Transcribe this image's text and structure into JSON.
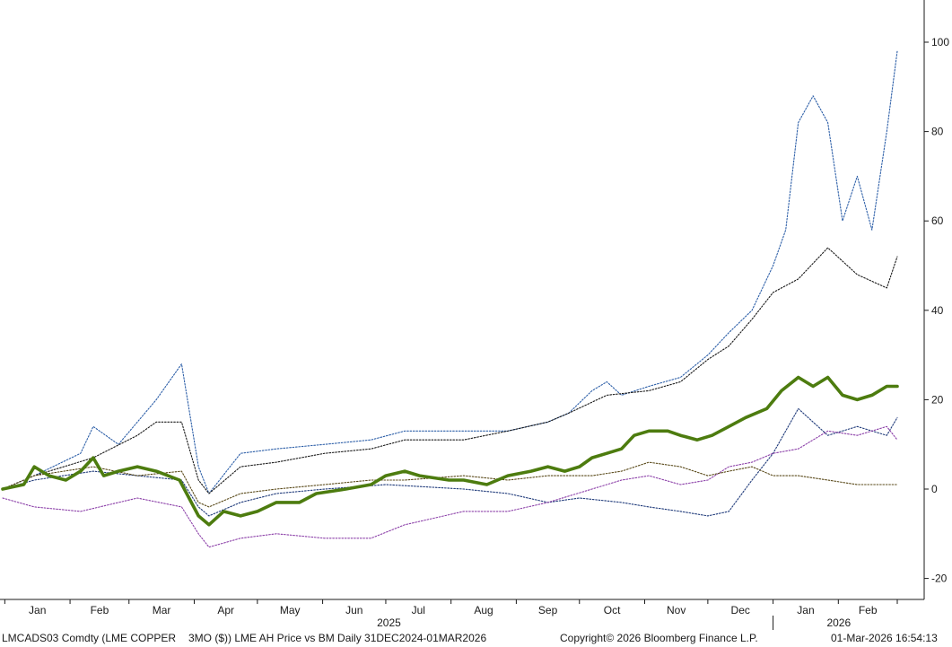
{
  "chart_data": {
    "type": "line",
    "title": "",
    "xlabel": "",
    "ylabel": "",
    "ylim": [
      -25,
      105
    ],
    "yticks": [
      -20,
      0,
      20,
      40,
      60,
      80,
      100
    ],
    "y_axis_side": "right",
    "grid": false,
    "x_month_labels": [
      "Jan",
      "Feb",
      "Mar",
      "Apr",
      "May",
      "Jun",
      "Jul",
      "Aug",
      "Sep",
      "Oct",
      "Nov",
      "Dec",
      "Jan",
      "Feb"
    ],
    "x_year_labels": [
      "2025",
      "2026"
    ],
    "x_range": [
      "2024-12-31",
      "2026-03-01"
    ],
    "series": [
      {
        "style": "solid-thick",
        "color": "#4d7c0f",
        "points": [
          [
            "2024-12-31",
            0
          ],
          [
            "2025-01-10",
            1
          ],
          [
            "2025-01-15",
            5
          ],
          [
            "2025-01-22",
            3
          ],
          [
            "2025-01-30",
            2
          ],
          [
            "2025-02-06",
            4
          ],
          [
            "2025-02-12",
            7
          ],
          [
            "2025-02-17",
            3
          ],
          [
            "2025-02-24",
            4
          ],
          [
            "2025-03-05",
            5
          ],
          [
            "2025-03-14",
            4
          ],
          [
            "2025-03-25",
            2
          ],
          [
            "2025-04-03",
            -6
          ],
          [
            "2025-04-08",
            -8
          ],
          [
            "2025-04-15",
            -5
          ],
          [
            "2025-04-23",
            -6
          ],
          [
            "2025-05-01",
            -5
          ],
          [
            "2025-05-10",
            -3
          ],
          [
            "2025-05-21",
            -3
          ],
          [
            "2025-05-29",
            -1
          ],
          [
            "2025-06-12",
            0
          ],
          [
            "2025-06-24",
            1
          ],
          [
            "2025-07-01",
            3
          ],
          [
            "2025-07-10",
            4
          ],
          [
            "2025-07-17",
            3
          ],
          [
            "2025-07-31",
            2
          ],
          [
            "2025-08-07",
            2
          ],
          [
            "2025-08-18",
            1
          ],
          [
            "2025-08-28",
            3
          ],
          [
            "2025-09-08",
            4
          ],
          [
            "2025-09-16",
            5
          ],
          [
            "2025-09-24",
            4
          ],
          [
            "2025-10-01",
            5
          ],
          [
            "2025-10-07",
            7
          ],
          [
            "2025-10-14",
            8
          ],
          [
            "2025-10-21",
            9
          ],
          [
            "2025-10-27",
            12
          ],
          [
            "2025-11-03",
            13
          ],
          [
            "2025-11-12",
            13
          ],
          [
            "2025-11-18",
            12
          ],
          [
            "2025-11-26",
            11
          ],
          [
            "2025-12-03",
            12
          ],
          [
            "2025-12-11",
            14
          ],
          [
            "2025-12-19",
            16
          ],
          [
            "2025-12-29",
            18
          ],
          [
            "2026-01-05",
            22
          ],
          [
            "2026-01-13",
            25
          ],
          [
            "2026-01-20",
            23
          ],
          [
            "2026-01-27",
            25
          ],
          [
            "2026-02-03",
            21
          ],
          [
            "2026-02-10",
            20
          ],
          [
            "2026-02-17",
            21
          ],
          [
            "2026-02-24",
            23
          ],
          [
            "2026-03-01",
            23
          ]
        ]
      },
      {
        "style": "dotted",
        "color": "#2d5fa8",
        "points": [
          [
            "2024-12-31",
            0
          ],
          [
            "2025-01-15",
            3
          ],
          [
            "2025-02-06",
            8
          ],
          [
            "2025-02-12",
            14
          ],
          [
            "2025-02-24",
            10
          ],
          [
            "2025-03-05",
            15
          ],
          [
            "2025-03-14",
            20
          ],
          [
            "2025-03-26",
            28
          ],
          [
            "2025-04-03",
            5
          ],
          [
            "2025-04-08",
            -1
          ],
          [
            "2025-04-23",
            8
          ],
          [
            "2025-05-10",
            9
          ],
          [
            "2025-06-02",
            10
          ],
          [
            "2025-06-24",
            11
          ],
          [
            "2025-07-10",
            13
          ],
          [
            "2025-08-07",
            13
          ],
          [
            "2025-08-28",
            13
          ],
          [
            "2025-09-16",
            15
          ],
          [
            "2025-09-26",
            17
          ],
          [
            "2025-10-07",
            22
          ],
          [
            "2025-10-14",
            24
          ],
          [
            "2025-10-21",
            21
          ],
          [
            "2025-11-03",
            23
          ],
          [
            "2025-11-18",
            25
          ],
          [
            "2025-12-01",
            30
          ],
          [
            "2025-12-11",
            35
          ],
          [
            "2025-12-22",
            40
          ],
          [
            "2026-01-01",
            50
          ],
          [
            "2026-01-07",
            58
          ],
          [
            "2026-01-13",
            82
          ],
          [
            "2026-01-20",
            88
          ],
          [
            "2026-01-27",
            82
          ],
          [
            "2026-02-03",
            60
          ],
          [
            "2026-02-10",
            70
          ],
          [
            "2026-02-17",
            58
          ],
          [
            "2026-02-24",
            80
          ],
          [
            "2026-03-01",
            98
          ]
        ]
      },
      {
        "style": "dotted",
        "color": "#1a1a1a",
        "points": [
          [
            "2024-12-31",
            0
          ],
          [
            "2025-01-15",
            3
          ],
          [
            "2025-02-12",
            7
          ],
          [
            "2025-03-05",
            12
          ],
          [
            "2025-03-14",
            15
          ],
          [
            "2025-03-26",
            15
          ],
          [
            "2025-04-03",
            2
          ],
          [
            "2025-04-08",
            -1
          ],
          [
            "2025-04-23",
            5
          ],
          [
            "2025-05-10",
            6
          ],
          [
            "2025-06-02",
            8
          ],
          [
            "2025-06-24",
            9
          ],
          [
            "2025-07-10",
            11
          ],
          [
            "2025-08-07",
            11
          ],
          [
            "2025-08-28",
            13
          ],
          [
            "2025-09-16",
            15
          ],
          [
            "2025-09-26",
            17
          ],
          [
            "2025-10-14",
            21
          ],
          [
            "2025-11-03",
            22
          ],
          [
            "2025-11-18",
            24
          ],
          [
            "2025-12-01",
            29
          ],
          [
            "2025-12-11",
            32
          ],
          [
            "2025-12-22",
            38
          ],
          [
            "2026-01-01",
            44
          ],
          [
            "2026-01-13",
            47
          ],
          [
            "2026-01-27",
            54
          ],
          [
            "2026-02-10",
            48
          ],
          [
            "2026-02-24",
            45
          ],
          [
            "2026-03-01",
            52
          ]
        ]
      },
      {
        "style": "dotted",
        "color": "#1f3a7a",
        "points": [
          [
            "2024-12-31",
            0
          ],
          [
            "2025-01-15",
            2
          ],
          [
            "2025-02-12",
            4
          ],
          [
            "2025-03-05",
            3
          ],
          [
            "2025-03-26",
            2
          ],
          [
            "2025-04-03",
            -4
          ],
          [
            "2025-04-08",
            -6
          ],
          [
            "2025-04-23",
            -3
          ],
          [
            "2025-05-10",
            -1
          ],
          [
            "2025-06-02",
            0
          ],
          [
            "2025-07-01",
            1
          ],
          [
            "2025-08-07",
            0
          ],
          [
            "2025-08-28",
            -1
          ],
          [
            "2025-09-16",
            -3
          ],
          [
            "2025-10-01",
            -2
          ],
          [
            "2025-10-21",
            -3
          ],
          [
            "2025-11-03",
            -4
          ],
          [
            "2025-11-18",
            -5
          ],
          [
            "2025-12-01",
            -6
          ],
          [
            "2025-12-11",
            -5
          ],
          [
            "2025-12-22",
            2
          ],
          [
            "2026-01-01",
            8
          ],
          [
            "2026-01-13",
            18
          ],
          [
            "2026-01-27",
            12
          ],
          [
            "2026-02-10",
            14
          ],
          [
            "2026-02-24",
            12
          ],
          [
            "2026-03-01",
            16
          ]
        ]
      },
      {
        "style": "dotted",
        "color": "#8b3fa8",
        "points": [
          [
            "2024-12-31",
            -2
          ],
          [
            "2025-01-15",
            -4
          ],
          [
            "2025-02-06",
            -5
          ],
          [
            "2025-03-05",
            -2
          ],
          [
            "2025-03-26",
            -4
          ],
          [
            "2025-04-03",
            -10
          ],
          [
            "2025-04-08",
            -13
          ],
          [
            "2025-04-23",
            -11
          ],
          [
            "2025-05-10",
            -10
          ],
          [
            "2025-06-02",
            -11
          ],
          [
            "2025-06-24",
            -11
          ],
          [
            "2025-07-10",
            -8
          ],
          [
            "2025-08-07",
            -5
          ],
          [
            "2025-08-28",
            -5
          ],
          [
            "2025-09-16",
            -3
          ],
          [
            "2025-10-07",
            0
          ],
          [
            "2025-10-21",
            2
          ],
          [
            "2025-11-03",
            3
          ],
          [
            "2025-11-18",
            1
          ],
          [
            "2025-12-01",
            2
          ],
          [
            "2025-12-11",
            5
          ],
          [
            "2025-12-22",
            6
          ],
          [
            "2026-01-01",
            8
          ],
          [
            "2026-01-13",
            9
          ],
          [
            "2026-01-27",
            13
          ],
          [
            "2026-02-10",
            12
          ],
          [
            "2026-02-24",
            14
          ],
          [
            "2026-03-01",
            11
          ]
        ]
      },
      {
        "style": "dotted",
        "color": "#5a4a1a",
        "points": [
          [
            "2024-12-31",
            0
          ],
          [
            "2025-01-15",
            3
          ],
          [
            "2025-02-12",
            5
          ],
          [
            "2025-03-05",
            3
          ],
          [
            "2025-03-26",
            4
          ],
          [
            "2025-04-03",
            -3
          ],
          [
            "2025-04-08",
            -4
          ],
          [
            "2025-04-23",
            -1
          ],
          [
            "2025-05-10",
            0
          ],
          [
            "2025-06-02",
            1
          ],
          [
            "2025-06-24",
            2
          ],
          [
            "2025-07-10",
            2
          ],
          [
            "2025-08-07",
            3
          ],
          [
            "2025-08-28",
            2
          ],
          [
            "2025-09-16",
            3
          ],
          [
            "2025-10-07",
            3
          ],
          [
            "2025-10-21",
            4
          ],
          [
            "2025-11-03",
            6
          ],
          [
            "2025-11-18",
            5
          ],
          [
            "2025-12-01",
            3
          ],
          [
            "2025-12-11",
            4
          ],
          [
            "2025-12-22",
            5
          ],
          [
            "2026-01-01",
            3
          ],
          [
            "2026-01-13",
            3
          ],
          [
            "2026-01-27",
            2
          ],
          [
            "2026-02-10",
            1
          ],
          [
            "2026-02-24",
            1
          ],
          [
            "2026-03-01",
            1
          ]
        ]
      }
    ]
  },
  "footer": {
    "ticker": "LMCADS03 Comdty (LME COPPER",
    "description": "3MO ($)) LME AH Price vs BM Daily 31DEC2024-01MAR2026",
    "copyright": "Copyright© 2026 Bloomberg Finance L.P.",
    "timestamp": "01-Mar-2026 16:54:13"
  }
}
